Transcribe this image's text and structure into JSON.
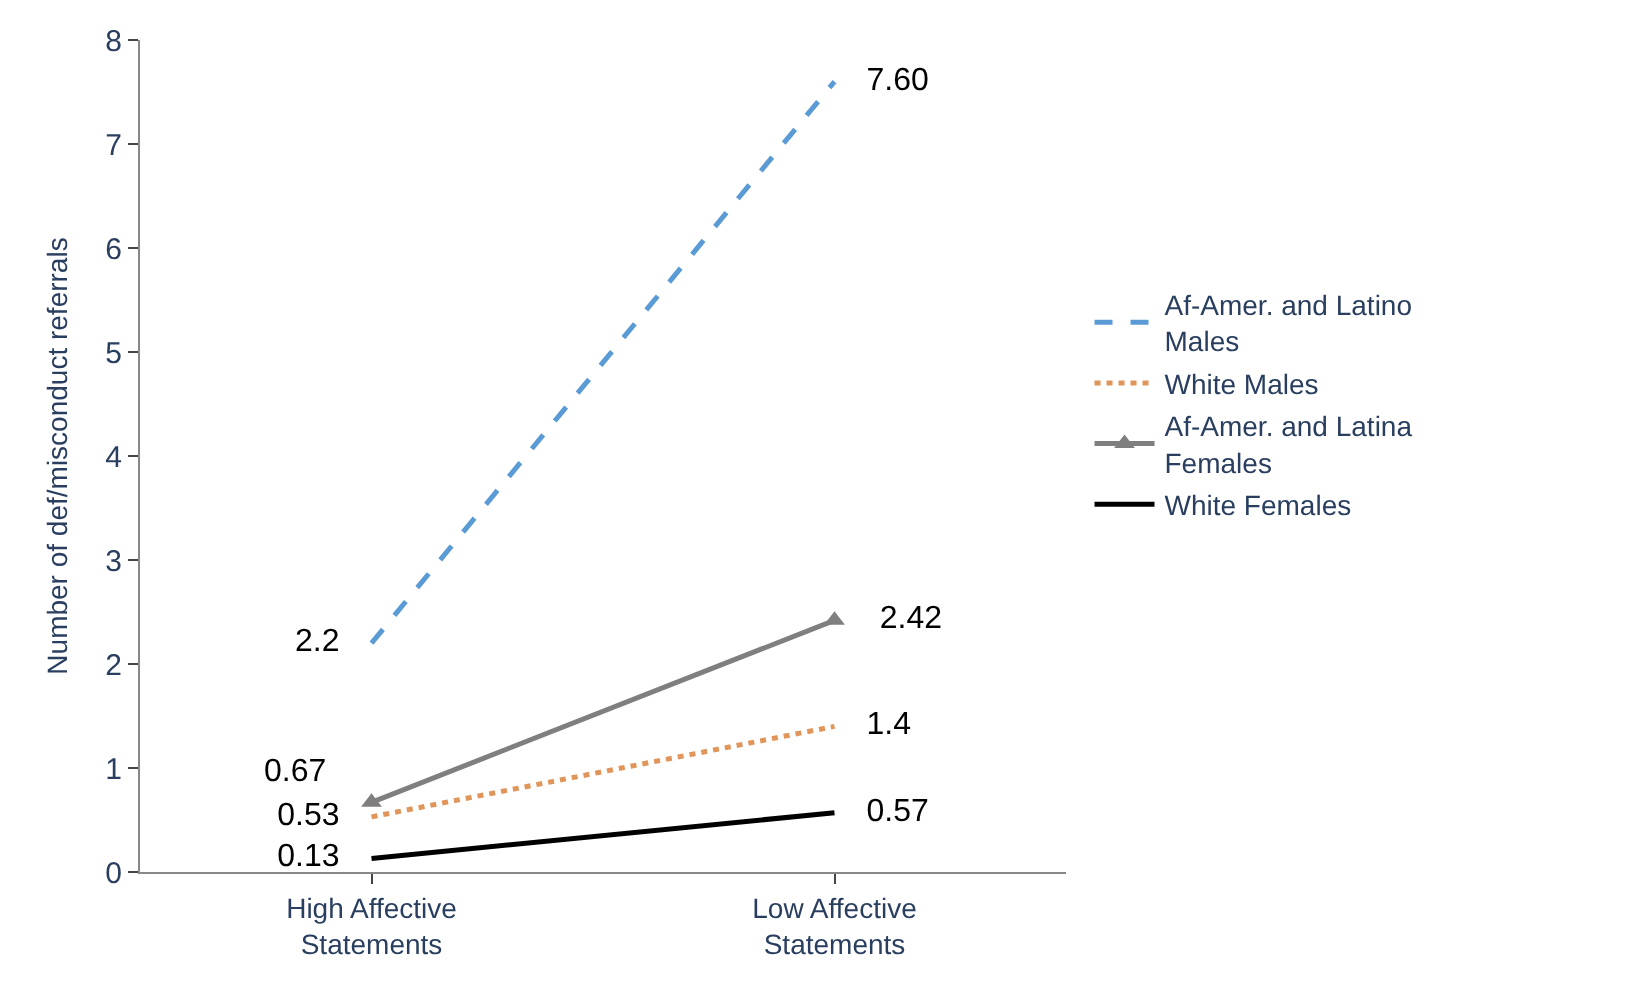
{
  "chart_data": {
    "type": "line",
    "ylabel": "Number of def/misconduct referrals",
    "categories": [
      "High Affective Statements",
      "Low Affective Statements"
    ],
    "series": [
      {
        "name": "Af-Amer. and Latino Males",
        "color": "#5b9bd5",
        "line_style": "dashed",
        "values": [
          2.2,
          7.6
        ],
        "value_labels": [
          "2.2",
          "7.60"
        ]
      },
      {
        "name": "White Males",
        "color": "#e0955a",
        "line_style": "dotted",
        "values": [
          0.53,
          1.4
        ],
        "value_labels": [
          "0.53",
          "1.4"
        ]
      },
      {
        "name": "Af-Amer. and Latina Females",
        "color": "#7f7f7f",
        "line_style": "solid",
        "marker": "triangle",
        "values": [
          0.67,
          2.42
        ],
        "value_labels": [
          "0.67",
          "2.42"
        ]
      },
      {
        "name": "White Females",
        "color": "#000000",
        "line_style": "solid",
        "values": [
          0.13,
          0.57
        ],
        "value_labels": [
          "0.13",
          "0.57"
        ]
      }
    ],
    "ylim": [
      0,
      8
    ],
    "yticks": [
      0,
      1,
      2,
      3,
      4,
      5,
      6,
      7,
      8
    ],
    "grid": false,
    "legend": "right"
  }
}
